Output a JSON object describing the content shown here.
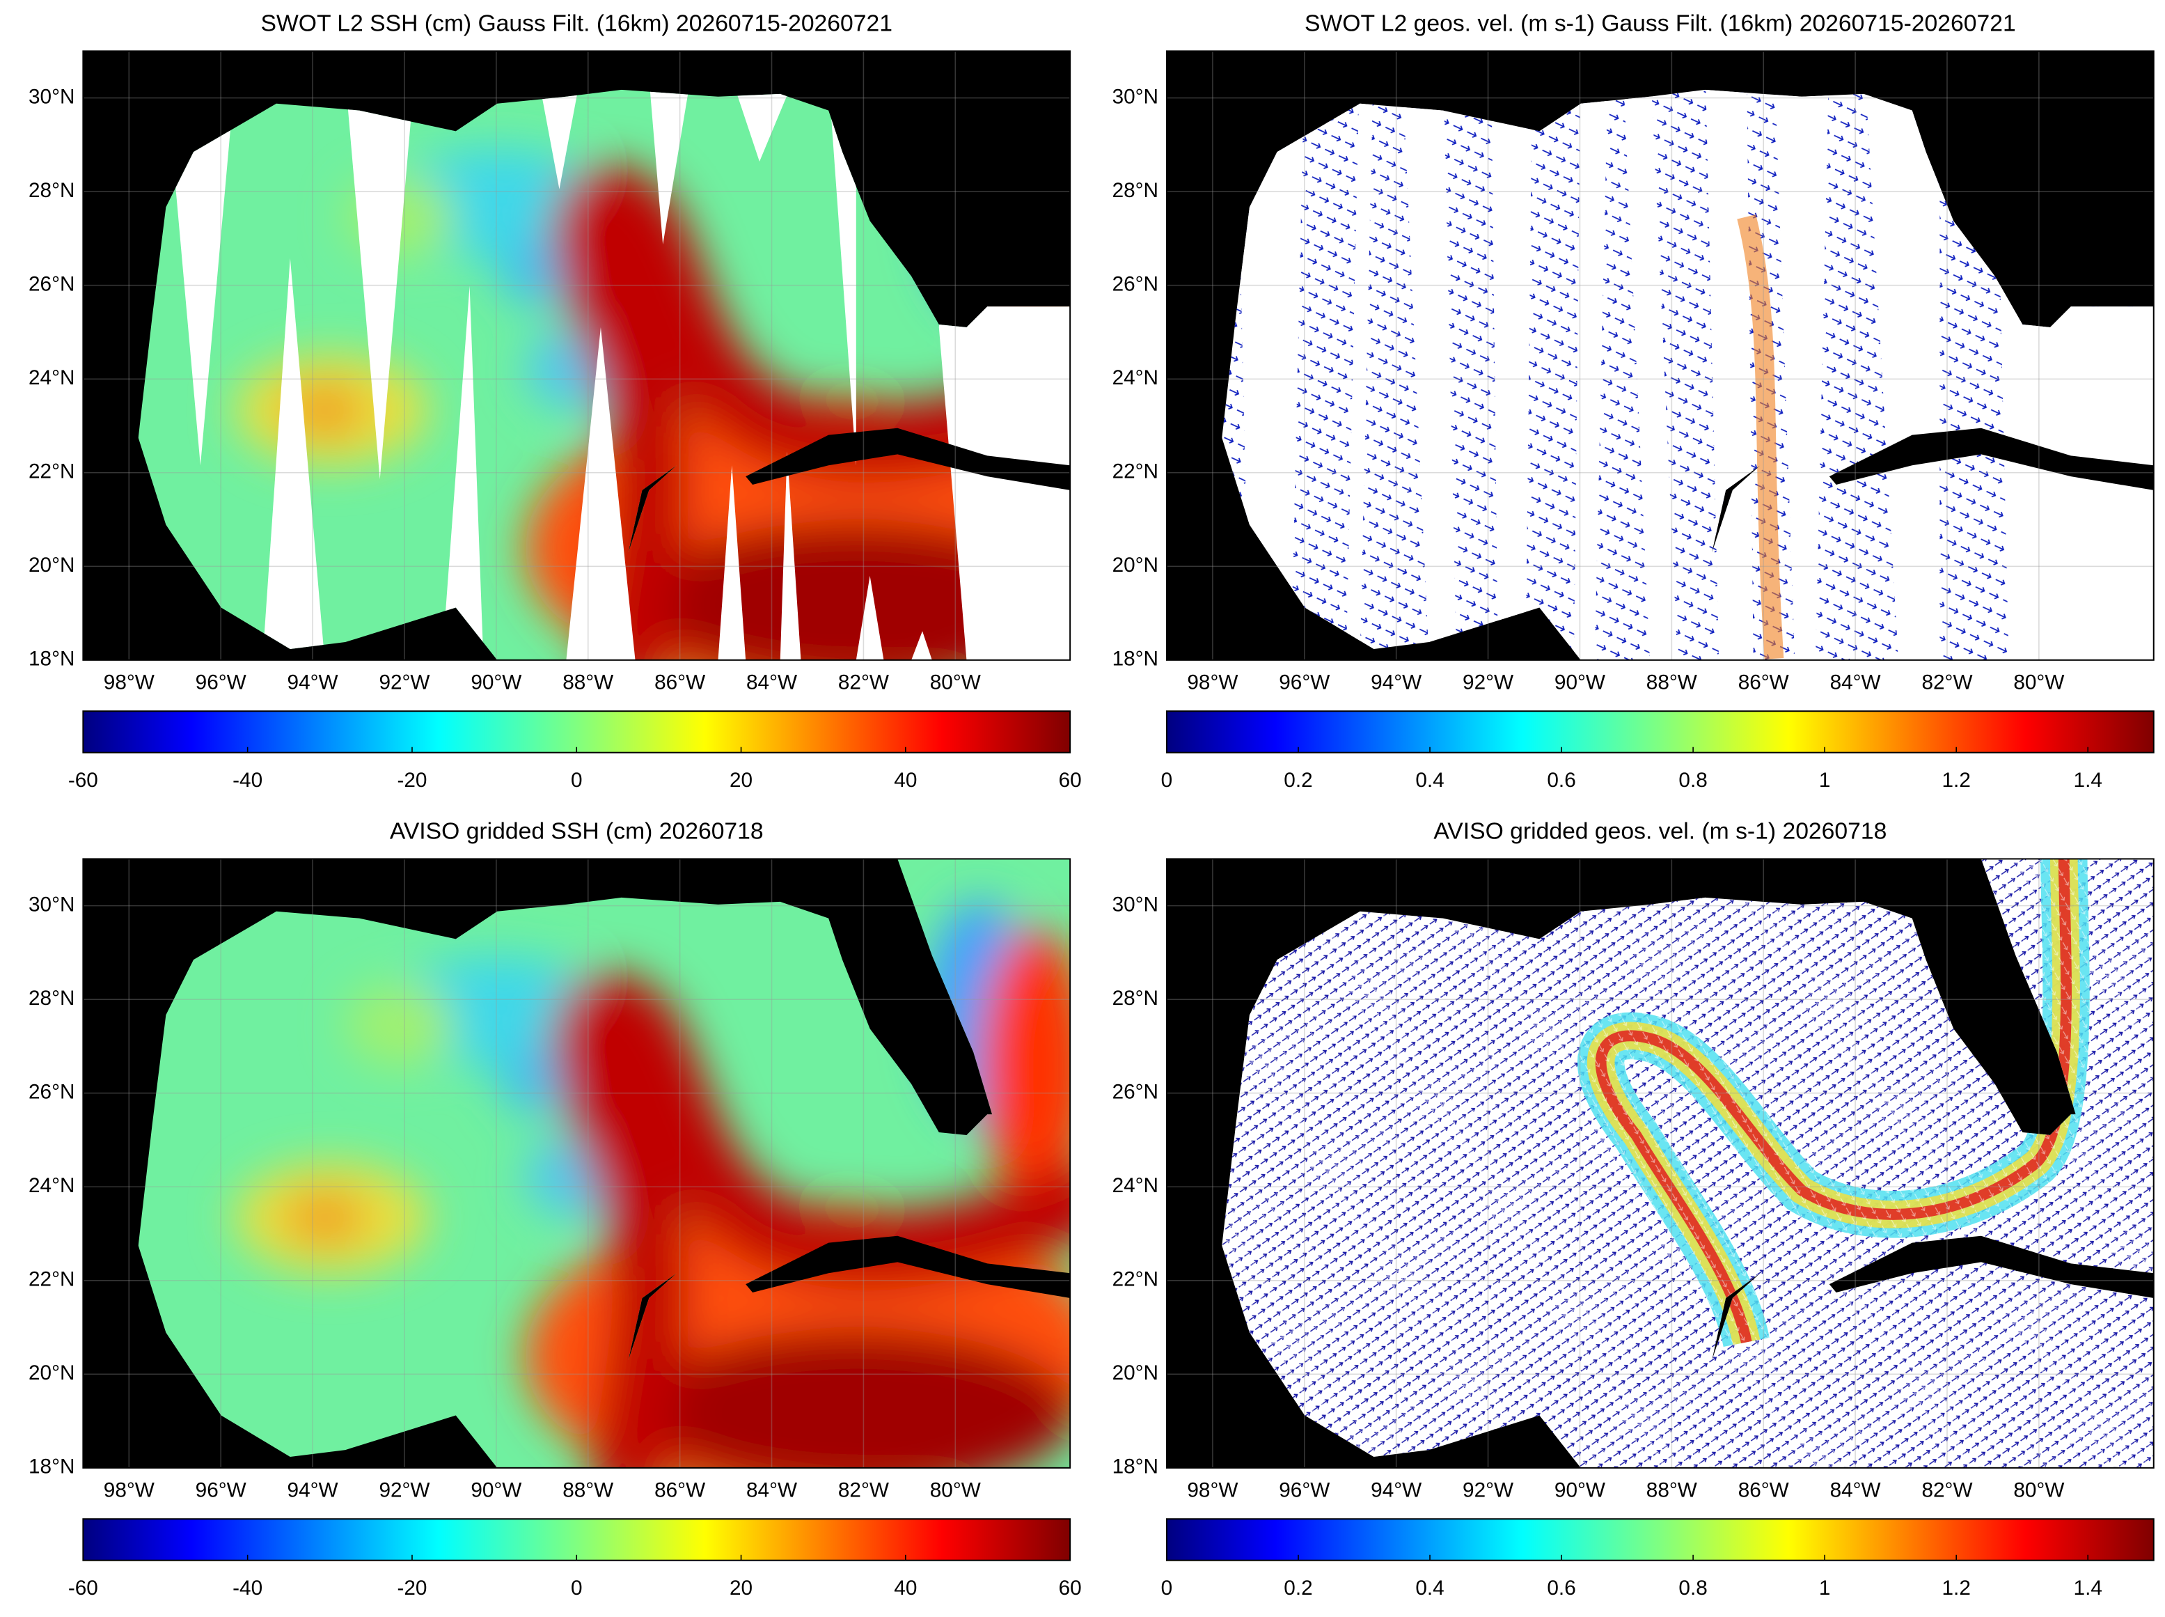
{
  "chart_data": [
    {
      "type": "map",
      "title": "SWOT L2 SSH (cm) Gauss Filt. (16km) 20260715-20260721",
      "xlim": [
        -99,
        -77.5
      ],
      "ylim": [
        18,
        31
      ],
      "xticks": [
        {
          "value": -98,
          "label": "98°W"
        },
        {
          "value": -96,
          "label": "96°W"
        },
        {
          "value": -94,
          "label": "94°W"
        },
        {
          "value": -92,
          "label": "92°W"
        },
        {
          "value": -90,
          "label": "90°W"
        },
        {
          "value": -88,
          "label": "88°W"
        },
        {
          "value": -86,
          "label": "86°W"
        },
        {
          "value": -84,
          "label": "84°W"
        },
        {
          "value": -82,
          "label": "82°W"
        },
        {
          "value": -80,
          "label": "80°W"
        }
      ],
      "yticks": [
        {
          "value": 18,
          "label": "18°N"
        },
        {
          "value": 20,
          "label": "20°N"
        },
        {
          "value": 22,
          "label": "22°N"
        },
        {
          "value": 24,
          "label": "24°N"
        },
        {
          "value": 26,
          "label": "26°N"
        },
        {
          "value": 28,
          "label": "28°N"
        },
        {
          "value": 30,
          "label": "30°N"
        }
      ],
      "grid": true,
      "colorbar": {
        "lim": [
          -60,
          60
        ],
        "ticks": [
          -60,
          -40,
          -20,
          0,
          20,
          40,
          60
        ],
        "colormap": "jet"
      }
    },
    {
      "type": "map",
      "title": "SWOT L2 geos. vel. (m s-1) Gauss Filt. (16km) 20260715-20260721",
      "xlim": [
        -99,
        -77.5
      ],
      "ylim": [
        18,
        31
      ],
      "xticks": [
        {
          "value": -98,
          "label": "98°W"
        },
        {
          "value": -96,
          "label": "96°W"
        },
        {
          "value": -94,
          "label": "94°W"
        },
        {
          "value": -92,
          "label": "92°W"
        },
        {
          "value": -90,
          "label": "90°W"
        },
        {
          "value": -88,
          "label": "88°W"
        },
        {
          "value": -86,
          "label": "86°W"
        },
        {
          "value": -84,
          "label": "84°W"
        },
        {
          "value": -82,
          "label": "82°W"
        },
        {
          "value": -80,
          "label": "80°W"
        }
      ],
      "yticks": [
        {
          "value": 18,
          "label": "18°N"
        },
        {
          "value": 20,
          "label": "20°N"
        },
        {
          "value": 22,
          "label": "22°N"
        },
        {
          "value": 24,
          "label": "24°N"
        },
        {
          "value": 26,
          "label": "26°N"
        },
        {
          "value": 28,
          "label": "28°N"
        },
        {
          "value": 30,
          "label": "30°N"
        }
      ],
      "grid": true,
      "colorbar": {
        "lim": [
          0,
          1.5
        ],
        "ticks": [
          0,
          0.2,
          0.4,
          0.6,
          0.8,
          1,
          1.2,
          1.4
        ],
        "colormap": "jet"
      }
    },
    {
      "type": "map",
      "title": "AVISO gridded SSH (cm) 20260718",
      "xlim": [
        -99,
        -77.5
      ],
      "ylim": [
        18,
        31
      ],
      "xticks": [
        {
          "value": -98,
          "label": "98°W"
        },
        {
          "value": -96,
          "label": "96°W"
        },
        {
          "value": -94,
          "label": "94°W"
        },
        {
          "value": -92,
          "label": "92°W"
        },
        {
          "value": -90,
          "label": "90°W"
        },
        {
          "value": -88,
          "label": "88°W"
        },
        {
          "value": -86,
          "label": "86°W"
        },
        {
          "value": -84,
          "label": "84°W"
        },
        {
          "value": -82,
          "label": "82°W"
        },
        {
          "value": -80,
          "label": "80°W"
        }
      ],
      "yticks": [
        {
          "value": 18,
          "label": "18°N"
        },
        {
          "value": 20,
          "label": "20°N"
        },
        {
          "value": 22,
          "label": "22°N"
        },
        {
          "value": 24,
          "label": "24°N"
        },
        {
          "value": 26,
          "label": "26°N"
        },
        {
          "value": 28,
          "label": "28°N"
        },
        {
          "value": 30,
          "label": "30°N"
        }
      ],
      "grid": true,
      "colorbar": {
        "lim": [
          -60,
          60
        ],
        "ticks": [
          -60,
          -40,
          -20,
          0,
          20,
          40,
          60
        ],
        "colormap": "jet"
      }
    },
    {
      "type": "map",
      "title": "AVISO gridded geos. vel. (m s-1)  20260718",
      "xlim": [
        -99,
        -77.5
      ],
      "ylim": [
        18,
        31
      ],
      "xticks": [
        {
          "value": -98,
          "label": "98°W"
        },
        {
          "value": -96,
          "label": "96°W"
        },
        {
          "value": -94,
          "label": "94°W"
        },
        {
          "value": -92,
          "label": "92°W"
        },
        {
          "value": -90,
          "label": "90°W"
        },
        {
          "value": -88,
          "label": "88°W"
        },
        {
          "value": -86,
          "label": "86°W"
        },
        {
          "value": -84,
          "label": "84°W"
        },
        {
          "value": -82,
          "label": "82°W"
        },
        {
          "value": -80,
          "label": "80°W"
        }
      ],
      "yticks": [
        {
          "value": 18,
          "label": "18°N"
        },
        {
          "value": 20,
          "label": "20°N"
        },
        {
          "value": 22,
          "label": "22°N"
        },
        {
          "value": 24,
          "label": "24°N"
        },
        {
          "value": 26,
          "label": "26°N"
        },
        {
          "value": 28,
          "label": "28°N"
        },
        {
          "value": 30,
          "label": "30°N"
        }
      ],
      "grid": true,
      "colorbar": {
        "lim": [
          0,
          1.5
        ],
        "ticks": [
          0,
          0.2,
          0.4,
          0.6,
          0.8,
          1,
          1.2,
          1.4
        ],
        "colormap": "jet"
      }
    }
  ]
}
